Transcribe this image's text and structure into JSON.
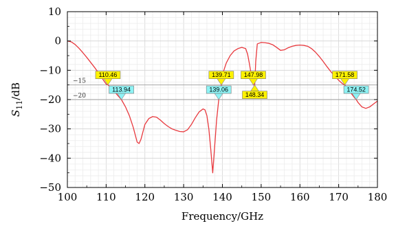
{
  "chart_data": {
    "type": "line",
    "xlabel": "Frequency/GHz",
    "ylabel": {
      "base": "S",
      "sub": "11",
      "tail": "/dB"
    },
    "xlim": [
      100,
      180
    ],
    "ylim": [
      -50,
      10
    ],
    "xticks": [
      100,
      110,
      120,
      130,
      140,
      150,
      160,
      170,
      180
    ],
    "yticks": [
      -50,
      -40,
      -30,
      -20,
      -10,
      0,
      10
    ],
    "ytick_labels": [
      "−50",
      "−40",
      "−30",
      "−20",
      "−10",
      "0",
      "10"
    ],
    "grid": true,
    "line_color": "#e8383d",
    "reference_lines": [
      {
        "y": -15,
        "label": "−15"
      },
      {
        "y": -20,
        "label": "−20"
      }
    ],
    "markers": [
      {
        "x": 110.46,
        "label": "110.46",
        "at": -15,
        "style": "yellow",
        "side": "above"
      },
      {
        "x": 113.94,
        "label": "113.94",
        "at": -20,
        "style": "cyan",
        "side": "above"
      },
      {
        "x": 139.71,
        "label": "139.71",
        "at": -15,
        "style": "yellow",
        "side": "above"
      },
      {
        "x": 139.06,
        "label": "139.06",
        "at": -20,
        "style": "cyan",
        "side": "above"
      },
      {
        "x": 147.98,
        "label": "147.98",
        "at": -15,
        "style": "yellow",
        "side": "above"
      },
      {
        "x": 148.34,
        "label": "148.34",
        "at": -15,
        "style": "yellow",
        "side": "below"
      },
      {
        "x": 171.58,
        "label": "171.58",
        "at": -15,
        "style": "yellow",
        "side": "above"
      },
      {
        "x": 174.52,
        "label": "174.52",
        "at": -20,
        "style": "cyan",
        "side": "above"
      }
    ],
    "marker_colors": {
      "yellow": "#fff200",
      "cyan": "#8ef3f5"
    },
    "series": [
      {
        "x": [
          100,
          101,
          102,
          103,
          104,
          105,
          106,
          107,
          108,
          109,
          110,
          110.46,
          111,
          112,
          113,
          113.94,
          115,
          116,
          117,
          118,
          118.5,
          119,
          120,
          121,
          122,
          123,
          124,
          125,
          126,
          127,
          128,
          129,
          130,
          131,
          132,
          133,
          134,
          135,
          135.5,
          136,
          136.5,
          137,
          137.5,
          138,
          138.5,
          139.06,
          139.71,
          140,
          141,
          142,
          143,
          144,
          145,
          146,
          146.5,
          147,
          147.5,
          147.98,
          148.34,
          148.6,
          149,
          150,
          151,
          152,
          153,
          154,
          155,
          156,
          157,
          158,
          159,
          160,
          161,
          162,
          163,
          164,
          165,
          166,
          167,
          168,
          169,
          170,
          171,
          171.58,
          172,
          173,
          174,
          174.52,
          175,
          176,
          177,
          178,
          179,
          180
        ],
        "y": [
          0,
          -0.3,
          -1.2,
          -2.5,
          -4.0,
          -5.6,
          -7.3,
          -9.0,
          -10.8,
          -12.8,
          -14.7,
          -15,
          -15.6,
          -17.0,
          -18.6,
          -20,
          -22.5,
          -25.5,
          -29.5,
          -34.5,
          -35,
          -33.5,
          -28.5,
          -26.5,
          -25.8,
          -26.0,
          -27.0,
          -28.2,
          -29.2,
          -30.0,
          -30.5,
          -30.9,
          -31.0,
          -30.3,
          -28.5,
          -26.2,
          -24.2,
          -23.2,
          -23.5,
          -25.5,
          -30.0,
          -37.0,
          -45.0,
          -36.0,
          -27.0,
          -20,
          -15,
          -11.5,
          -7.5,
          -5.0,
          -3.4,
          -2.6,
          -2.2,
          -2.6,
          -4.5,
          -8.0,
          -12.0,
          -15,
          -15,
          -7.0,
          -1.0,
          -0.5,
          -0.6,
          -0.8,
          -1.3,
          -2.2,
          -3.2,
          -3.0,
          -2.3,
          -1.8,
          -1.5,
          -1.4,
          -1.5,
          -1.8,
          -2.6,
          -3.8,
          -5.3,
          -7.0,
          -8.8,
          -10.5,
          -12.0,
          -13.4,
          -14.6,
          -15,
          -15.8,
          -17.5,
          -19.2,
          -20,
          -21.0,
          -22.5,
          -23.0,
          -22.5,
          -21.5,
          -20.5
        ]
      }
    ]
  }
}
